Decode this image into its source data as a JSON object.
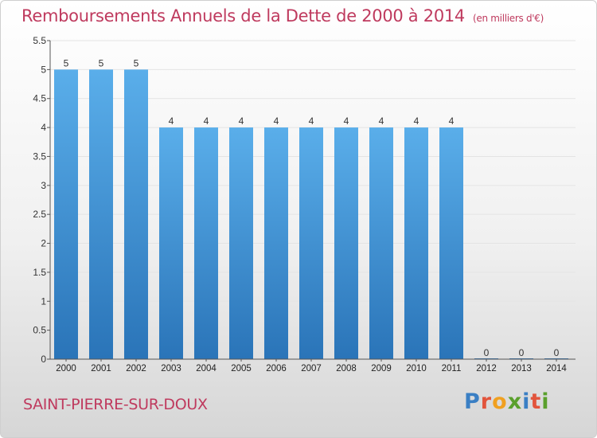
{
  "header": {
    "title": "Remboursements Annuels de la Dette de 2000 à 2014",
    "unit": "(en milliers d'€)"
  },
  "footer": {
    "commune": "SAINT-PIERRE-SUR-DOUX",
    "brand": "Proxiti",
    "brand_colors": [
      "#3a7fc4",
      "#e2543c",
      "#f0a020",
      "#5aa02c",
      "#3a7fc4",
      "#e2543c",
      "#5aa02c"
    ]
  },
  "chart_data": {
    "type": "bar",
    "categories": [
      "2000",
      "2001",
      "2002",
      "2003",
      "2004",
      "2005",
      "2006",
      "2007",
      "2008",
      "2009",
      "2010",
      "2011",
      "2012",
      "2013",
      "2014"
    ],
    "values": [
      5,
      5,
      5,
      4,
      4,
      4,
      4,
      4,
      4,
      4,
      4,
      4,
      0,
      0,
      0
    ],
    "ylim": [
      0,
      5.5
    ],
    "yticks": [
      0,
      0.5,
      1,
      1.5,
      2,
      2.5,
      3,
      3.5,
      4,
      4.5,
      5,
      5.5
    ],
    "bar_color_light": "#5aaeea",
    "bar_color_dark": "#2a74b8",
    "data_labels": true
  }
}
